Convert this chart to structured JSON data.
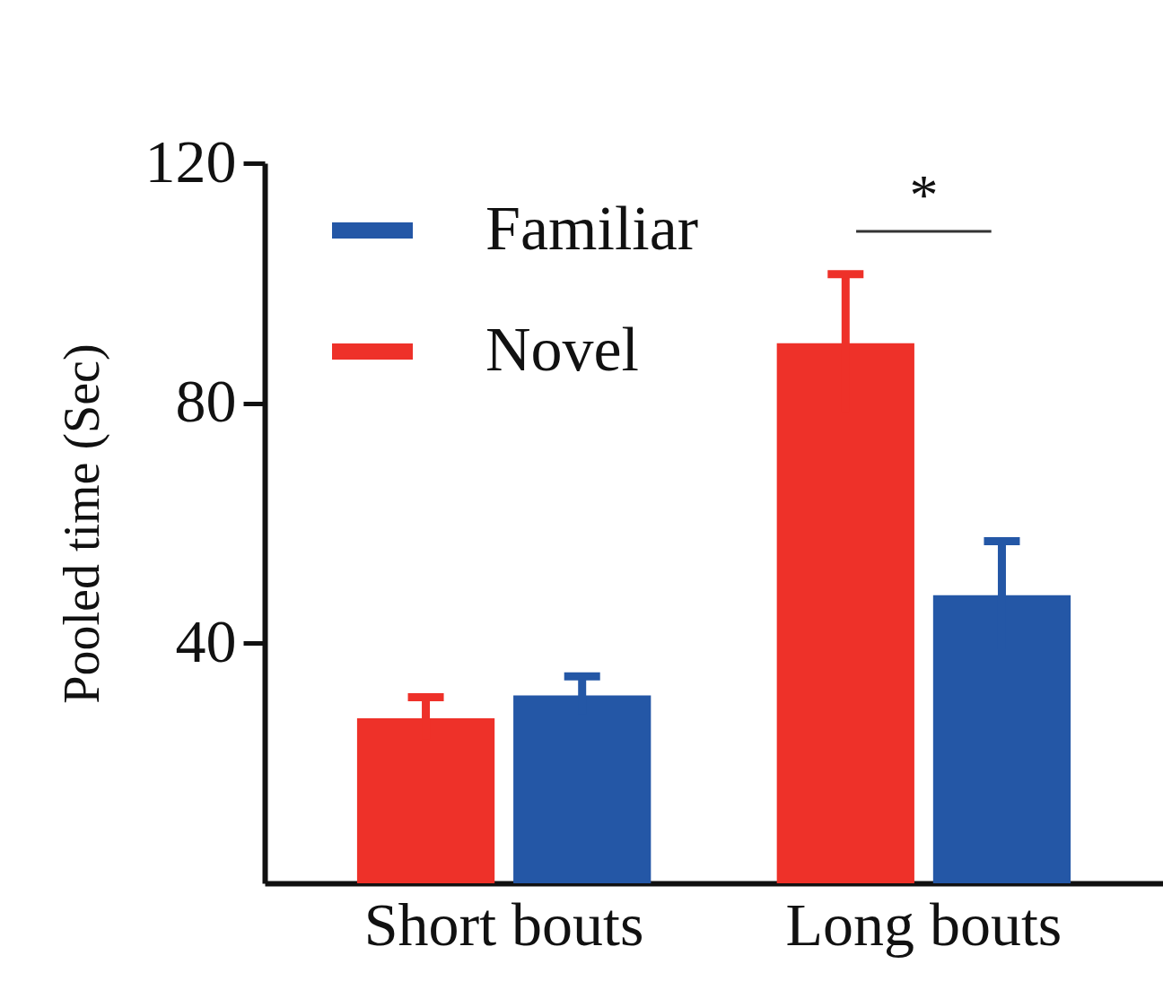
{
  "chart_data": {
    "type": "bar",
    "ylabel": "Pooled time (Sec)",
    "categories": [
      "Short bouts",
      "Long bouts"
    ],
    "series": [
      {
        "name": "Novel",
        "color": "#ee3129",
        "values": [
          27.5,
          90
        ],
        "errors": [
          3.5,
          11.5
        ]
      },
      {
        "name": "Familiar",
        "color": "#2457a6",
        "values": [
          31.3,
          48
        ],
        "errors": [
          3.2,
          9
        ]
      }
    ],
    "ylim": [
      0,
      120
    ],
    "yticks": [
      40,
      80,
      120
    ],
    "grid": false,
    "legend": "top left",
    "annotations": [
      "*"
    ]
  }
}
